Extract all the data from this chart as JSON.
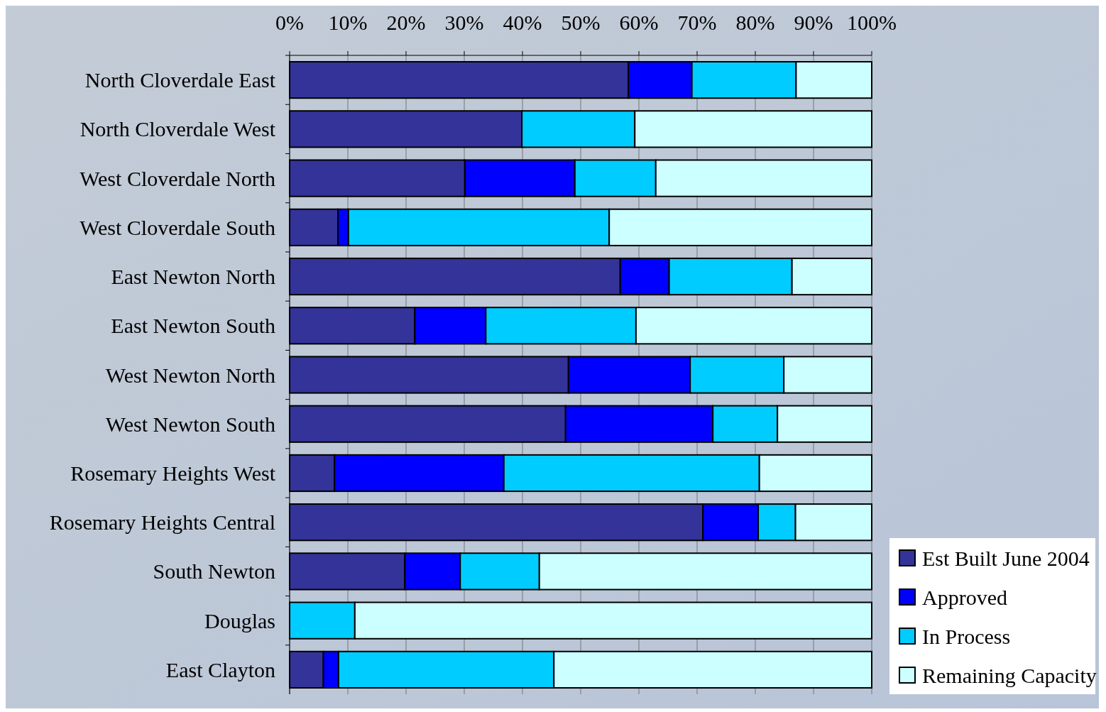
{
  "chart_data": {
    "type": "bar",
    "orientation": "horizontal",
    "stacked": true,
    "categories": [
      "North Cloverdale East",
      "North Cloverdale West",
      "West Cloverdale North",
      "West Cloverdale South",
      "East Newton North",
      "East Newton South",
      "West Newton North",
      "West Newton South",
      "Rosemary Heights West",
      "Rosemary Heights Central",
      "South Newton",
      "Douglas",
      "East Clayton"
    ],
    "series": [
      {
        "name": "Est Built June 2004",
        "color": "#333399",
        "values": [
          58.2,
          39.9,
          30.1,
          8.3,
          56.8,
          21.5,
          47.9,
          47.4,
          7.7,
          71,
          19.8,
          0,
          5.8
        ]
      },
      {
        "name": "Approved",
        "color": "#0000ff",
        "values": [
          10.9,
          0,
          18.9,
          1.8,
          8.4,
          12.2,
          20.9,
          25.3,
          29.1,
          9.5,
          9.5,
          0,
          2.6
        ]
      },
      {
        "name": "In Process",
        "color": "#00ccff",
        "values": [
          17.9,
          19.4,
          13.9,
          44.8,
          21.1,
          25.8,
          16.1,
          11.1,
          43.9,
          6.4,
          13.6,
          11.2,
          37
        ]
      },
      {
        "name": "Remaining Capacity",
        "color": "#ccffff",
        "values": [
          13,
          40.7,
          37.1,
          45.1,
          13.7,
          40.5,
          15.1,
          16.2,
          19.3,
          13.1,
          57.1,
          88.8,
          54.6
        ]
      }
    ],
    "xlim": [
      0,
      100
    ],
    "xticks": [
      {
        "value": 0,
        "label": "0%"
      },
      {
        "value": 10,
        "label": "10%"
      },
      {
        "value": 20,
        "label": "20%"
      },
      {
        "value": 30,
        "label": "30%"
      },
      {
        "value": 40,
        "label": "40%"
      },
      {
        "value": 50,
        "label": "50%"
      },
      {
        "value": 60,
        "label": "60%"
      },
      {
        "value": 70,
        "label": "70%"
      },
      {
        "value": 80,
        "label": "80%"
      },
      {
        "value": 90,
        "label": "90%"
      },
      {
        "value": 100,
        "label": "100%"
      }
    ],
    "grid": "x",
    "legend": "right"
  }
}
